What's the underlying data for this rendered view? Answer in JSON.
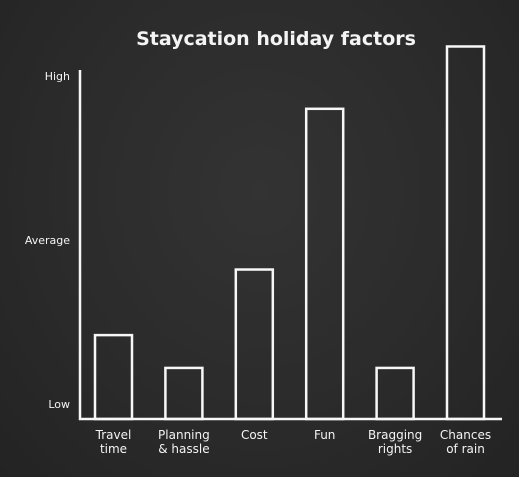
{
  "chart_data": {
    "type": "bar",
    "title": "Staycation holiday factors",
    "xlabel": "",
    "ylabel": "",
    "ylim": [
      0,
      10
    ],
    "y_ticks": [
      {
        "value": 0,
        "label": "Low"
      },
      {
        "value": 5,
        "label": "Average"
      },
      {
        "value": 10,
        "label": "High"
      }
    ],
    "categories": [
      [
        "Travel",
        "time"
      ],
      [
        "Planning",
        "& hassle"
      ],
      [
        "Cost"
      ],
      [
        "Fun"
      ],
      [
        "Bragging",
        "rights"
      ],
      [
        "Chances",
        "of rain"
      ]
    ],
    "values": [
      2.1,
      1.1,
      4.1,
      9.0,
      1.1,
      10.9
    ],
    "grid": false,
    "legend": "none"
  },
  "colors": {
    "background": "#2b2b2b",
    "chalk": "#f7f7f7"
  }
}
